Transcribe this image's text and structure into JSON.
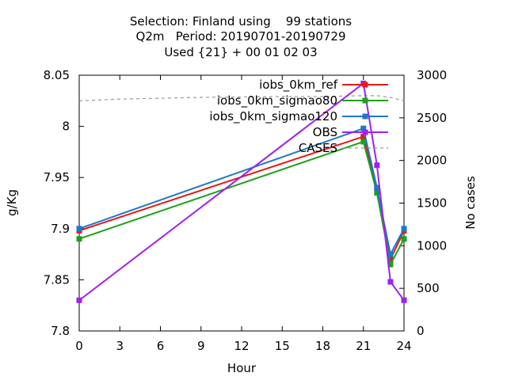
{
  "chart_data": {
    "type": "line",
    "title": {
      "line1": "Selection: Finland using    99 stations",
      "line2": "Q2m   Period: 20190701-20190729",
      "line3": "Used {21} + 00 01 02 03"
    },
    "xlabel": "Hour",
    "ylabel": "g/Kg",
    "y2label": "No cases",
    "xlim": [
      0,
      24
    ],
    "ylim": [
      7.8,
      8.05
    ],
    "y2lim": [
      0,
      3000
    ],
    "xticks": [
      "0",
      "3",
      "6",
      "9",
      "12",
      "15",
      "18",
      "21",
      "24"
    ],
    "yticks": [
      "7.8",
      "7.85",
      "7.9",
      "7.95",
      "8",
      "8.05"
    ],
    "y2ticks": [
      "0",
      "500",
      "1000",
      "1500",
      "2000",
      "2500",
      "3000"
    ],
    "grid": false,
    "legend_position": "top-right",
    "series": [
      {
        "name": "iobs_0km_ref",
        "color": "#e41a1c",
        "marker": "filled-square",
        "axis": "y",
        "x": [
          0,
          21,
          22,
          23,
          24
        ],
        "y": [
          7.898,
          7.99,
          7.94,
          7.87,
          7.898
        ]
      },
      {
        "name": "iobs_0km_sigmao80",
        "color": "#1aa31a",
        "marker": "filled-square",
        "axis": "y",
        "x": [
          0,
          21,
          22,
          23,
          24
        ],
        "y": [
          7.89,
          7.985,
          7.935,
          7.865,
          7.89
        ]
      },
      {
        "name": "iobs_0km_sigmao120",
        "color": "#1e78c8",
        "marker": "filled-square",
        "axis": "y",
        "x": [
          0,
          21,
          22,
          23,
          24
        ],
        "y": [
          7.9,
          7.998,
          7.94,
          7.875,
          7.9
        ]
      },
      {
        "name": "OBS",
        "color": "#a020f0",
        "marker": "filled-square",
        "axis": "y",
        "x": [
          0,
          21,
          22,
          23,
          24
        ],
        "y": [
          7.83,
          8.042,
          7.962,
          7.848,
          7.83
        ]
      },
      {
        "name": "CASES",
        "color": "#999999",
        "marker": "none",
        "dashed": true,
        "axis": "y2",
        "x": [
          0,
          3,
          6,
          9,
          12,
          15,
          18,
          21,
          22,
          23,
          24
        ],
        "y": [
          2700,
          2720,
          2730,
          2740,
          2745,
          2750,
          2750,
          2760,
          2760,
          2740,
          2700
        ]
      }
    ]
  }
}
